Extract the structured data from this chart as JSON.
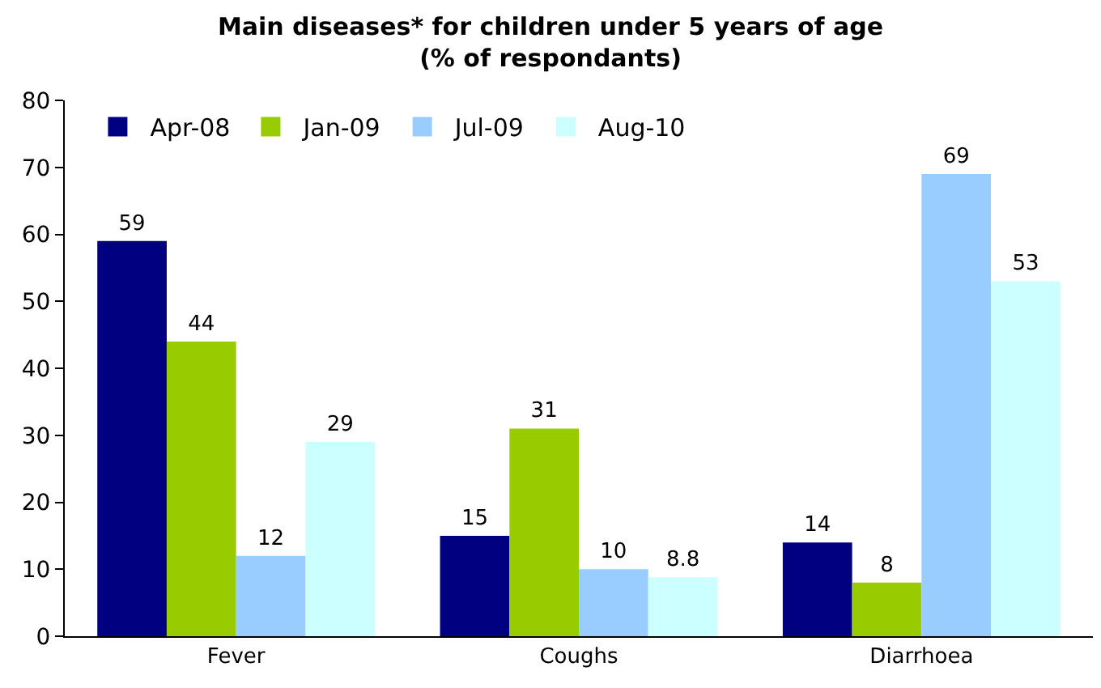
{
  "chart_data": {
    "type": "bar",
    "title": "Main diseases* for children under 5 years of age\n(% of respondants)",
    "categories": [
      "Fever",
      "Coughs",
      "Diarrhoea"
    ],
    "series": [
      {
        "name": "Apr-08",
        "color": "#000080",
        "values": [
          59,
          15,
          14
        ]
      },
      {
        "name": "Jan-09",
        "color": "#99cc00",
        "values": [
          44,
          31,
          8
        ]
      },
      {
        "name": "Jul-09",
        "color": "#99ccff",
        "values": [
          12,
          10,
          69
        ]
      },
      {
        "name": "Aug-10",
        "color": "#ccffff",
        "values": [
          29,
          8.8,
          53
        ]
      }
    ],
    "ylim": [
      0,
      80
    ],
    "yticks": [
      0,
      10,
      20,
      30,
      40,
      50,
      60,
      70,
      80
    ],
    "grid": false,
    "legend": "top left",
    "data_labels": true
  }
}
